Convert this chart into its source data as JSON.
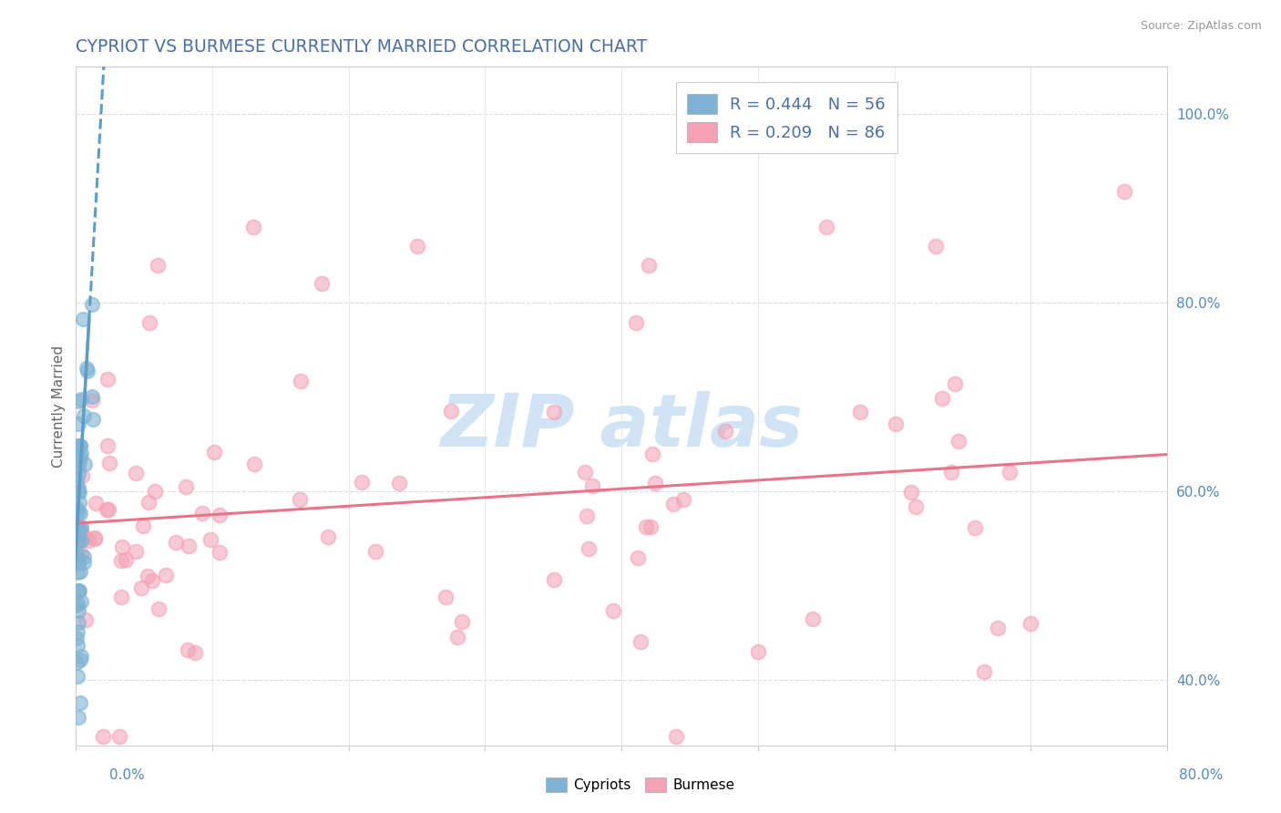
{
  "title": "CYPRIOT VS BURMESE CURRENTLY MARRIED CORRELATION CHART",
  "source": "Source: ZipAtlas.com",
  "ylabel": "Currently Married",
  "right_ytick_labels": [
    "40.0%",
    "60.0%",
    "80.0%",
    "100.0%"
  ],
  "right_ytick_values": [
    0.4,
    0.6,
    0.8,
    1.0
  ],
  "cypriot_color": "#7FB3D3",
  "burmese_color": "#F4A0B5",
  "cypriot_line_color": "#5B9EC9",
  "burmese_line_color": "#E8748A",
  "title_color": "#4A6FA5",
  "source_color": "#999999",
  "R_cypriot": 0.444,
  "N_cypriot": 56,
  "R_burmese": 0.209,
  "N_burmese": 86,
  "xlim": [
    0.0,
    0.8
  ],
  "ylim": [
    0.33,
    1.05
  ],
  "watermark_color": "#D0E4F5",
  "xtick_positions": [
    0.0,
    0.1,
    0.2,
    0.3,
    0.4,
    0.5,
    0.6,
    0.7,
    0.8
  ],
  "grid_color": "#E8E8E8",
  "dotted_grid_color": "#DDDDDD"
}
